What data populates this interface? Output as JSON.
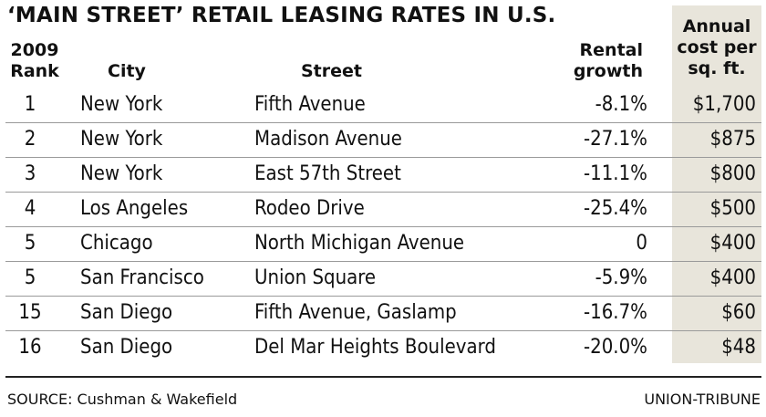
{
  "chart_data": {
    "type": "table",
    "title": "‘MAIN STREET’ RETAIL LEASING RATES IN U.S.",
    "columns": {
      "rank": "2009\nRank",
      "city": "City",
      "street": "Street",
      "growth": "Rental\ngrowth",
      "cost": "Annual\ncost per\nsq. ft."
    },
    "rows": [
      {
        "rank": "1",
        "city": "New York",
        "street": "Fifth Avenue",
        "growth": "-8.1%",
        "cost": "$1,700"
      },
      {
        "rank": "2",
        "city": "New York",
        "street": "Madison Avenue",
        "growth": "-27.1%",
        "cost": "$875"
      },
      {
        "rank": "3",
        "city": "New York",
        "street": "East 57th Street",
        "growth": "-11.1%",
        "cost": "$800"
      },
      {
        "rank": "4",
        "city": "Los Angeles",
        "street": "Rodeo Drive",
        "growth": "-25.4%",
        "cost": "$500"
      },
      {
        "rank": "5",
        "city": "Chicago",
        "street": "North Michigan Avenue",
        "growth": "0",
        "cost": "$400"
      },
      {
        "rank": "5",
        "city": "San Francisco",
        "street": "Union Square",
        "growth": "-5.9%",
        "cost": "$400"
      },
      {
        "rank": "15",
        "city": "San Diego",
        "street": "Fifth Avenue, Gaslamp",
        "growth": "-16.7%",
        "cost": "$60"
      },
      {
        "rank": "16",
        "city": "San Diego",
        "street": "Del Mar Heights Boulevard",
        "growth": "-20.0%",
        "cost": "$48"
      }
    ],
    "source": "SOURCE: Cushman & Wakefield",
    "credit": "UNION-TRIBUNE"
  },
  "colors": {
    "cost_column_bg": "#e8e5db",
    "text": "#111111",
    "rule": "#9a9a9a"
  }
}
